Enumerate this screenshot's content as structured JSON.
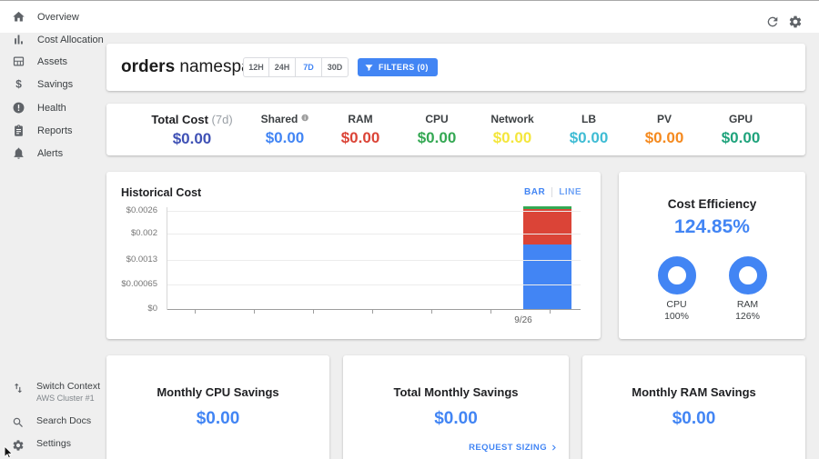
{
  "colors": {
    "accent_blue": "#4285f4",
    "page_bg": "#efefef"
  },
  "topbar": {
    "icons": [
      "refresh-icon",
      "gear-icon"
    ]
  },
  "sidebar": {
    "items": [
      {
        "icon": "home-icon",
        "label": "Overview"
      },
      {
        "icon": "bar-chart-icon",
        "label": "Cost Allocation"
      },
      {
        "icon": "grid-icon",
        "label": "Assets"
      },
      {
        "icon": "dollar-icon",
        "label": "Savings"
      },
      {
        "icon": "health-icon",
        "label": "Health"
      },
      {
        "icon": "clipboard-icon",
        "label": "Reports"
      },
      {
        "icon": "bell-icon",
        "label": "Alerts"
      }
    ],
    "footer": [
      {
        "icon": "swap-vertical-icon",
        "label": "Switch Context",
        "sublabel": "AWS Cluster #1"
      },
      {
        "icon": "search-icon",
        "label": "Search Docs"
      },
      {
        "icon": "gear-icon",
        "label": "Settings"
      }
    ]
  },
  "header": {
    "title_bold": "orders",
    "title_regular": "namespace",
    "ranges": [
      "12H",
      "24H",
      "7D",
      "30D"
    ],
    "active_range": "7D",
    "filters_button": "FILTERS (0)"
  },
  "stats": [
    {
      "label": "Total Cost",
      "suffix": "(7d)",
      "value": "$0.00",
      "color": "#3f51b5"
    },
    {
      "label": "Shared",
      "info": true,
      "value": "$0.00",
      "color": "#4285f4"
    },
    {
      "label": "RAM",
      "value": "$0.00",
      "color": "#db4437"
    },
    {
      "label": "CPU",
      "value": "$0.00",
      "color": "#34a853"
    },
    {
      "label": "Network",
      "value": "$0.00",
      "color": "#f4e63c"
    },
    {
      "label": "LB",
      "value": "$0.00",
      "color": "#3fbcd4"
    },
    {
      "label": "PV",
      "value": "$0.00",
      "color": "#f58a1f"
    },
    {
      "label": "GPU",
      "value": "$0.00",
      "color": "#1fa37c"
    }
  ],
  "chart_card": {
    "title": "Historical Cost",
    "toggles": [
      "BAR",
      "LINE"
    ],
    "active_toggle": "BAR"
  },
  "chart_data": {
    "type": "bar",
    "title": "Historical Cost",
    "stacked": true,
    "x": [
      "9/26"
    ],
    "series": [
      {
        "name": "blue",
        "color": "#4285f4",
        "values": [
          0.0017
        ]
      },
      {
        "name": "red",
        "color": "#db4437",
        "values": [
          0.00095
        ]
      },
      {
        "name": "green",
        "color": "#34a853",
        "values": [
          8e-05
        ]
      }
    ],
    "yticks": [
      {
        "value": 0,
        "label": "$0"
      },
      {
        "value": 0.00065,
        "label": "$0.00065"
      },
      {
        "value": 0.0013,
        "label": "$0.0013"
      },
      {
        "value": 0.002,
        "label": "$0.002"
      },
      {
        "value": 0.0026,
        "label": "$0.0026"
      }
    ],
    "ymax": 0.0026,
    "ylim": [
      0,
      0.0026
    ],
    "grid": true,
    "legend": "none",
    "xlabel": "",
    "ylabel": ""
  },
  "efficiency": {
    "title": "Cost Efficiency",
    "value": "124.85%",
    "donuts": [
      {
        "label": "CPU",
        "value": "100%"
      },
      {
        "label": "RAM",
        "value": "126%"
      }
    ]
  },
  "savings_cards": [
    {
      "title": "Monthly CPU Savings",
      "value": "$0.00"
    },
    {
      "title": "Total Monthly Savings",
      "value": "$0.00",
      "link": "REQUEST SIZING"
    },
    {
      "title": "Monthly RAM Savings",
      "value": "$0.00"
    }
  ]
}
